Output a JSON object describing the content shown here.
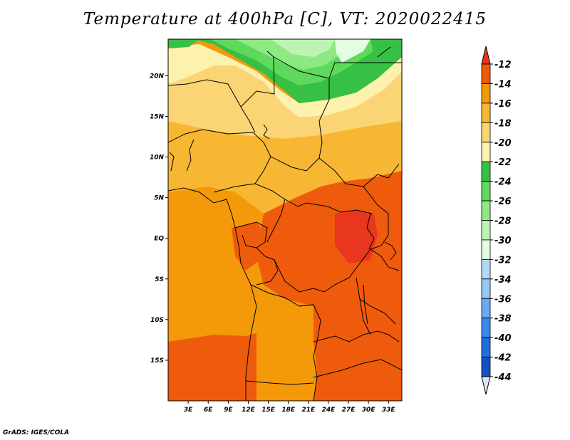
{
  "title": "Temperature at 400hPa [C], VT: 2020022415",
  "footer": "GrADS: IGES/COLA",
  "map": {
    "lat_ticks": [
      "20N",
      "15N",
      "10N",
      "5N",
      "EQ",
      "5S",
      "10S",
      "15S"
    ],
    "lat_values": [
      20,
      15,
      10,
      5,
      0,
      -5,
      -10,
      -15
    ],
    "lon_ticks": [
      "3E",
      "6E",
      "9E",
      "12E",
      "15E",
      "18E",
      "21E",
      "24E",
      "27E",
      "30E",
      "33E"
    ],
    "lon_values": [
      3,
      6,
      9,
      12,
      15,
      18,
      21,
      24,
      27,
      30,
      33
    ],
    "lat_range": [
      -20,
      24.5
    ],
    "lon_range": [
      0,
      35
    ]
  },
  "colorbar": {
    "labels": [
      "-12",
      "-14",
      "-16",
      "-18",
      "-20",
      "-22",
      "-24",
      "-26",
      "-28",
      "-30",
      "-32",
      "-34",
      "-36",
      "-38",
      "-40",
      "-42",
      "-44"
    ],
    "colors": [
      "#e8371e",
      "#ef5b0c",
      "#f4990a",
      "#f7b733",
      "#fbd575",
      "#fdf1ae",
      "#36c045",
      "#5fd95c",
      "#8ee983",
      "#bdf4b3",
      "#e2fde2",
      "#b4d8f7",
      "#98c6f5",
      "#6aaaf0",
      "#3989e8",
      "#1f6fdf",
      "#1451c4",
      "#0e36a6",
      "#08127a",
      "#e2e2f7"
    ],
    "top_color": "#e8371e",
    "bottom_color": "#e2e2f7"
  }
}
